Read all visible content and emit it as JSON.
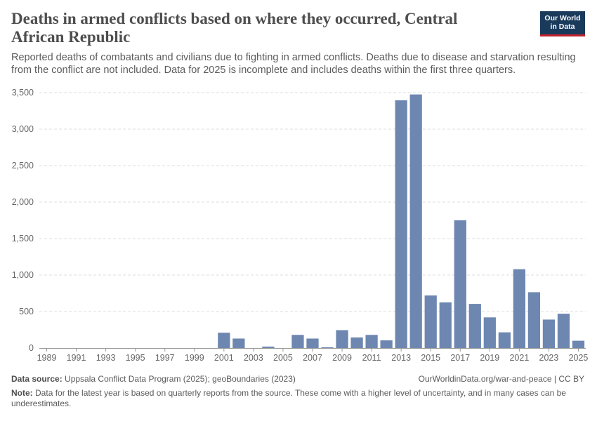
{
  "header": {
    "title": "Deaths in armed conflicts based on where they occurred, Central African Republic",
    "subtitle": "Reported deaths of combatants and civilians due to fighting in armed conflicts. Deaths due to disease and starvation resulting from the conflict are not included. Data for 2025 is incomplete and includes deaths within the first three quarters.",
    "logo_line1": "Our World",
    "logo_line2": "in Data"
  },
  "footer": {
    "source_label": "Data source:",
    "source_text": "Uppsala Conflict Data Program (2025); geoBoundaries (2023)",
    "url": "OurWorldinData.org/war-and-peace | CC BY",
    "note_label": "Note:",
    "note_text": "Data for the latest year is based on quarterly reports from the source. These come with a higher level of uncertainty, and in many cases can be underestimates."
  },
  "colors": {
    "bar": "#6d87b1",
    "grid": "#dddddd",
    "axis": "#666666"
  },
  "chart_data": {
    "type": "bar",
    "title": "Deaths in armed conflicts based on where they occurred, Central African Republic",
    "xlabel": "",
    "ylabel": "",
    "ylim": [
      0,
      3500
    ],
    "yticks": [
      0,
      500,
      1000,
      1500,
      2000,
      2500,
      3000,
      3500
    ],
    "ytick_labels": [
      "0",
      "500",
      "1,000",
      "1,500",
      "2,000",
      "2,500",
      "3,000",
      "3,500"
    ],
    "xtick_labels": [
      "1989",
      "1991",
      "1993",
      "1995",
      "1997",
      "1999",
      "2001",
      "2003",
      "2005",
      "2007",
      "2009",
      "2011",
      "2013",
      "2015",
      "2017",
      "2019",
      "2021",
      "2023",
      "2025"
    ],
    "grid": true,
    "categories": [
      1989,
      1990,
      1991,
      1992,
      1993,
      1994,
      1995,
      1996,
      1997,
      1998,
      1999,
      2000,
      2001,
      2002,
      2003,
      2004,
      2005,
      2006,
      2007,
      2008,
      2009,
      2010,
      2011,
      2012,
      2013,
      2014,
      2015,
      2016,
      2017,
      2018,
      2019,
      2020,
      2021,
      2022,
      2023,
      2024,
      2025
    ],
    "values": [
      0,
      0,
      0,
      0,
      0,
      0,
      0,
      0,
      0,
      0,
      0,
      0,
      210,
      130,
      0,
      20,
      0,
      180,
      130,
      10,
      245,
      145,
      180,
      105,
      3395,
      3475,
      720,
      625,
      1750,
      605,
      420,
      215,
      1080,
      765,
      390,
      470,
      100
    ]
  }
}
